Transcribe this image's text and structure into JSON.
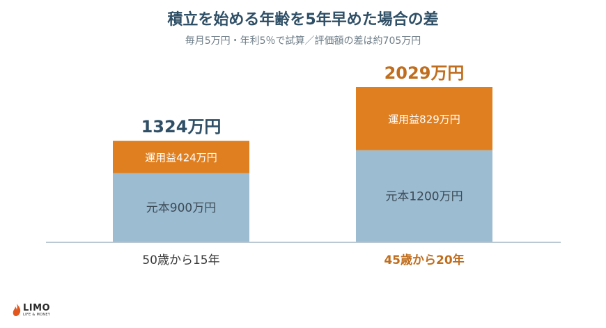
{
  "title": "積立を始める年齢を5年早めた場合の差",
  "subtitle": "毎月5万円・年利5％で試算／評価額の差は約705万円",
  "colors": {
    "principal": "#9cbcd2",
    "gain": "#e07f1f",
    "title": "#2f4f66",
    "highlight": "#c06e1e",
    "axis": "#b9c8d3",
    "text": "#3a3a3a"
  },
  "chart_data": {
    "type": "bar",
    "stacked": true,
    "categories": [
      "50歳から15年",
      "45歳から20年"
    ],
    "series": [
      {
        "key": "principal",
        "values": [
          900,
          1200
        ],
        "labels": [
          "元本900万円",
          "元本1200万円"
        ]
      },
      {
        "key": "gain",
        "values": [
          424,
          829
        ],
        "labels": [
          "運用益424万円",
          "運用益829万円"
        ]
      }
    ],
    "totals": [
      1324,
      2029
    ],
    "total_labels": [
      "1324万円",
      "2029万円"
    ],
    "highlight_index": 1,
    "ylim": [
      0,
      2029
    ],
    "grid": false,
    "legend": "none"
  },
  "logo": {
    "text": "LIMO",
    "sub": "LIFE & MONEY"
  }
}
